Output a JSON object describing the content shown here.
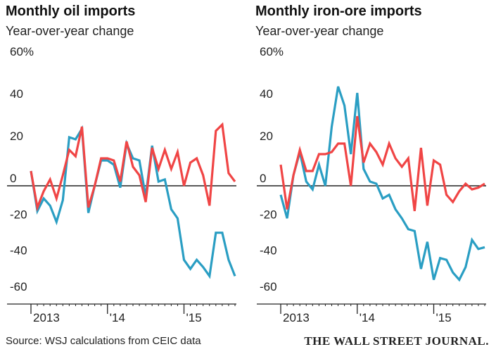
{
  "chart_data": [
    {
      "type": "line",
      "title": "Monthly oil imports",
      "subtitle": "Year-over-year change",
      "ylim": [
        -60,
        60
      ],
      "yticks": [
        60,
        40,
        20,
        0,
        -20,
        -40,
        -60
      ],
      "ytick_labels": [
        "60%",
        "40",
        "20",
        "0",
        "-20",
        "-40",
        "-60"
      ],
      "xticks": [
        "2013",
        "'14",
        "'15"
      ],
      "x_start": "2013-01",
      "colors": {
        "blue": "#2a9ec3",
        "red": "#f04545"
      },
      "grid": "zero-line only",
      "series": [
        {
          "color_key": "blue",
          "values": [
            7,
            -14,
            -7,
            -11,
            -20,
            -8,
            23,
            22,
            27,
            -15,
            0,
            12,
            12,
            10,
            -1,
            20,
            13,
            12,
            -6,
            19,
            2,
            3,
            -13,
            -18,
            -41,
            -46,
            -41,
            -45,
            -50,
            -26,
            -26,
            -41,
            -50
          ]
        },
        {
          "color_key": "red",
          "values": [
            7,
            -12,
            -3,
            3,
            -7,
            5,
            17,
            14,
            28,
            -12,
            0,
            13,
            13,
            12,
            2,
            21,
            9,
            5,
            -9,
            18,
            8,
            17,
            8,
            16,
            0,
            11,
            13,
            5,
            -11,
            26,
            29,
            6,
            2
          ]
        }
      ]
    },
    {
      "type": "line",
      "title": "Monthly iron-ore imports",
      "subtitle": "Year-over-year change",
      "ylim": [
        -60,
        60
      ],
      "yticks": [
        60,
        40,
        20,
        0,
        -20,
        -40,
        -60
      ],
      "ytick_labels": [
        "60%",
        "40",
        "20",
        "0",
        "-20",
        "-40",
        "-60"
      ],
      "xticks": [
        "2013",
        "'14",
        "'15"
      ],
      "x_start": "2013-01",
      "colors": {
        "blue": "#2a9ec3",
        "red": "#f04545"
      },
      "grid": "zero-line only",
      "series": [
        {
          "color_key": "blue",
          "values": [
            -5,
            -18,
            5,
            16,
            2,
            -2,
            10,
            0,
            28,
            47,
            38,
            15,
            44,
            8,
            2,
            1,
            -7,
            -5,
            -13,
            -18,
            -24,
            -25,
            -46,
            -31,
            -52,
            -40,
            -41,
            -48,
            -52,
            -45,
            -30,
            -35,
            -34
          ]
        },
        {
          "color_key": "red",
          "values": [
            10,
            -13,
            5,
            17,
            7,
            7,
            15,
            15,
            16,
            20,
            20,
            0,
            33,
            11,
            20,
            16,
            10,
            20,
            13,
            9,
            13,
            -14,
            18,
            -11,
            12,
            10,
            -5,
            -9,
            -3,
            1,
            -2,
            -1,
            1
          ]
        }
      ]
    }
  ],
  "footer": {
    "source": "Source: WSJ calculations from CEIC data",
    "credit": "THE WALL STREET JOURNAL."
  }
}
